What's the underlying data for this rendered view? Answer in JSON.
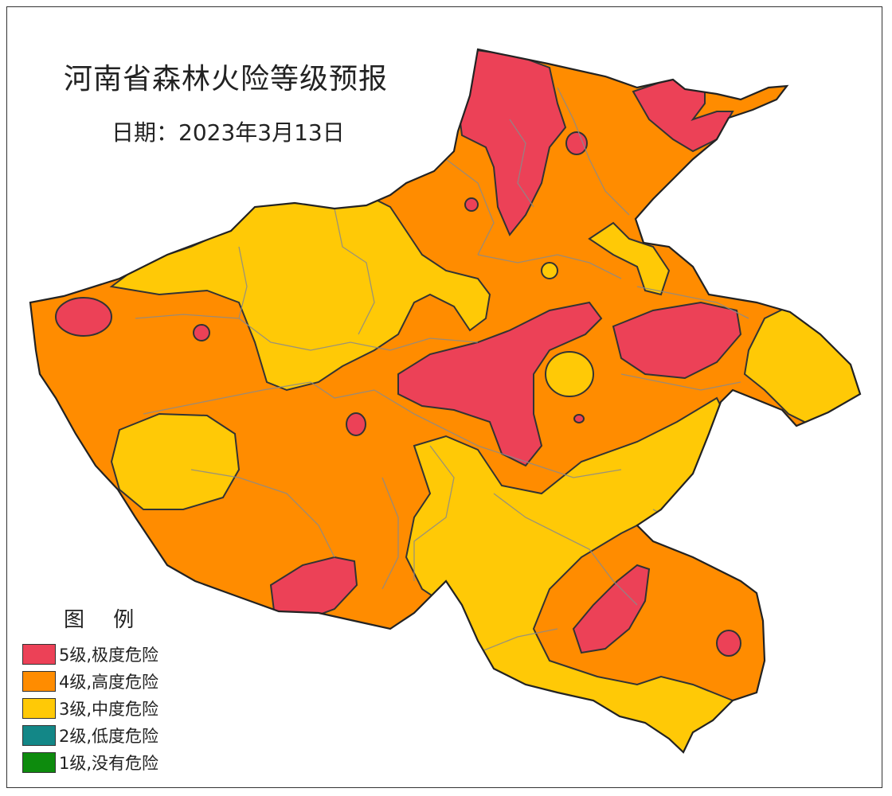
{
  "map": {
    "title": "河南省森林火险等级预报",
    "date_label": "日期：2023年3月13日",
    "colors": {
      "level5": "#ec4157",
      "level4": "#ff8c00",
      "level3": "#ffc906",
      "level2": "#138787",
      "level1": "#0d8b0d",
      "border": "#333333",
      "county_lines": "#8a8a8a"
    }
  },
  "legend": {
    "title": "图 例",
    "items": [
      {
        "label": "5级,极度危险",
        "color": "#ec4157"
      },
      {
        "label": "4级,高度危险",
        "color": "#ff8c00"
      },
      {
        "label": "3级,中度危险",
        "color": "#ffc906"
      },
      {
        "label": "2级,低度危险",
        "color": "#138787"
      },
      {
        "label": "1级,没有危险",
        "color": "#0d8b0d"
      }
    ]
  }
}
